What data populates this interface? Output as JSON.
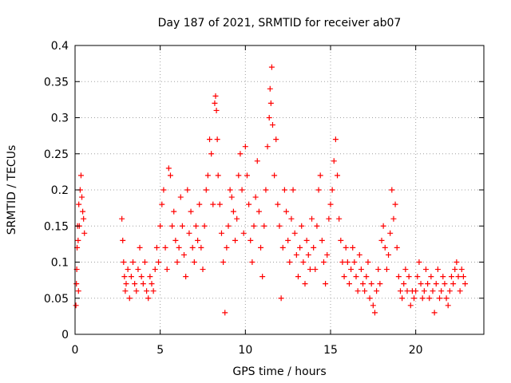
{
  "chart_data": {
    "type": "scatter",
    "title": "Day 187 of 2021, SRMTID for receiver ab07",
    "xlabel": "GPS time / hours",
    "ylabel": "SRMTID / TECUs",
    "xlim": [
      0,
      24
    ],
    "ylim": [
      0,
      0.4
    ],
    "xticks": [
      0,
      5,
      10,
      15,
      20
    ],
    "xtick_labels": [
      "0",
      "5",
      "10",
      "15",
      "20"
    ],
    "yticks": [
      0,
      0.05,
      0.1,
      0.15,
      0.2,
      0.25,
      0.3,
      0.35,
      0.4
    ],
    "ytick_labels": [
      "0",
      "0.05",
      "0.1",
      "0.15",
      "0.2",
      "0.25",
      "0.3",
      "0.35",
      "0.4"
    ],
    "grid": true,
    "marker": "plus",
    "color": "#ff0000",
    "series": [
      {
        "name": "SRMTID",
        "x": [
          0.05,
          0.08,
          0.1,
          0.12,
          0.15,
          0.18,
          0.2,
          0.22,
          0.25,
          0.3,
          0.35,
          0.4,
          0.45,
          0.5,
          0.55,
          2.75,
          2.8,
          2.85,
          2.9,
          2.95,
          3.0,
          3.1,
          3.2,
          3.3,
          3.4,
          3.5,
          3.6,
          3.7,
          3.8,
          3.9,
          4.0,
          4.1,
          4.2,
          4.3,
          4.4,
          4.5,
          4.6,
          4.7,
          4.8,
          4.9,
          5.0,
          5.1,
          5.2,
          5.3,
          5.4,
          5.5,
          5.6,
          5.7,
          5.8,
          5.9,
          6.0,
          6.1,
          6.2,
          6.3,
          6.4,
          6.5,
          6.6,
          6.7,
          6.8,
          6.9,
          7.0,
          7.1,
          7.2,
          7.3,
          7.4,
          7.5,
          7.6,
          7.7,
          7.8,
          7.9,
          8.0,
          8.1,
          8.2,
          8.25,
          8.3,
          8.35,
          8.4,
          8.5,
          8.6,
          8.7,
          8.8,
          8.9,
          9.0,
          9.1,
          9.2,
          9.3,
          9.4,
          9.5,
          9.6,
          9.7,
          9.8,
          9.9,
          10.0,
          10.1,
          10.2,
          10.3,
          10.4,
          10.5,
          10.6,
          10.7,
          10.8,
          10.9,
          11.0,
          11.1,
          11.2,
          11.3,
          11.4,
          11.45,
          11.5,
          11.55,
          11.6,
          11.7,
          11.8,
          11.9,
          12.0,
          12.1,
          12.2,
          12.3,
          12.4,
          12.5,
          12.6,
          12.7,
          12.8,
          12.9,
          13.0,
          13.1,
          13.2,
          13.3,
          13.4,
          13.5,
          13.6,
          13.7,
          13.8,
          13.9,
          14.0,
          14.1,
          14.2,
          14.3,
          14.4,
          14.5,
          14.6,
          14.7,
          14.8,
          14.9,
          15.0,
          15.1,
          15.2,
          15.3,
          15.4,
          15.5,
          15.6,
          15.7,
          15.8,
          15.9,
          16.0,
          16.1,
          16.2,
          16.3,
          16.4,
          16.5,
          16.6,
          16.7,
          16.8,
          16.9,
          17.0,
          17.1,
          17.2,
          17.3,
          17.4,
          17.5,
          17.6,
          17.7,
          17.8,
          17.9,
          18.0,
          18.1,
          18.2,
          18.3,
          18.4,
          18.5,
          18.6,
          18.7,
          18.8,
          18.9,
          19.0,
          19.1,
          19.2,
          19.3,
          19.4,
          19.5,
          19.6,
          19.7,
          19.8,
          19.9,
          20.0,
          20.1,
          20.2,
          20.3,
          20.4,
          20.5,
          20.6,
          20.7,
          20.8,
          20.9,
          21.0,
          21.1,
          21.2,
          21.3,
          21.4,
          21.5,
          21.6,
          21.7,
          21.8,
          21.9,
          22.0,
          22.1,
          22.2,
          22.3,
          22.4,
          22.5,
          22.6,
          22.7,
          22.8,
          22.9
        ],
        "y": [
          0.04,
          0.07,
          0.09,
          0.12,
          0.15,
          0.13,
          0.06,
          0.18,
          0.15,
          0.2,
          0.22,
          0.19,
          0.17,
          0.16,
          0.14,
          0.16,
          0.13,
          0.1,
          0.08,
          0.06,
          0.07,
          0.09,
          0.05,
          0.08,
          0.1,
          0.07,
          0.06,
          0.09,
          0.12,
          0.08,
          0.07,
          0.1,
          0.06,
          0.05,
          0.08,
          0.07,
          0.06,
          0.09,
          0.12,
          0.1,
          0.15,
          0.18,
          0.2,
          0.12,
          0.09,
          0.23,
          0.22,
          0.15,
          0.17,
          0.13,
          0.1,
          0.12,
          0.19,
          0.15,
          0.11,
          0.08,
          0.2,
          0.14,
          0.17,
          0.12,
          0.1,
          0.15,
          0.13,
          0.18,
          0.12,
          0.09,
          0.15,
          0.2,
          0.22,
          0.27,
          0.25,
          0.18,
          0.32,
          0.33,
          0.31,
          0.27,
          0.22,
          0.18,
          0.14,
          0.1,
          0.03,
          0.12,
          0.15,
          0.2,
          0.19,
          0.17,
          0.13,
          0.16,
          0.22,
          0.25,
          0.2,
          0.14,
          0.26,
          0.22,
          0.18,
          0.13,
          0.1,
          0.15,
          0.19,
          0.24,
          0.17,
          0.12,
          0.08,
          0.15,
          0.2,
          0.26,
          0.3,
          0.34,
          0.32,
          0.37,
          0.29,
          0.22,
          0.27,
          0.18,
          0.15,
          0.05,
          0.12,
          0.2,
          0.17,
          0.13,
          0.1,
          0.16,
          0.2,
          0.14,
          0.11,
          0.08,
          0.12,
          0.15,
          0.1,
          0.07,
          0.13,
          0.11,
          0.09,
          0.16,
          0.12,
          0.09,
          0.15,
          0.2,
          0.22,
          0.13,
          0.1,
          0.07,
          0.11,
          0.16,
          0.18,
          0.2,
          0.24,
          0.27,
          0.22,
          0.16,
          0.13,
          0.1,
          0.08,
          0.12,
          0.1,
          0.07,
          0.09,
          0.12,
          0.1,
          0.08,
          0.06,
          0.11,
          0.09,
          0.07,
          0.06,
          0.08,
          0.1,
          0.05,
          0.07,
          0.04,
          0.03,
          0.06,
          0.09,
          0.07,
          0.13,
          0.15,
          0.12,
          0.09,
          0.11,
          0.14,
          0.2,
          0.16,
          0.18,
          0.12,
          0.08,
          0.06,
          0.05,
          0.07,
          0.09,
          0.06,
          0.08,
          0.04,
          0.06,
          0.05,
          0.06,
          0.08,
          0.1,
          0.07,
          0.05,
          0.06,
          0.09,
          0.07,
          0.05,
          0.08,
          0.06,
          0.03,
          0.07,
          0.09,
          0.05,
          0.06,
          0.08,
          0.07,
          0.05,
          0.04,
          0.06,
          0.08,
          0.07,
          0.09,
          0.1,
          0.08,
          0.06,
          0.09,
          0.08,
          0.07
        ]
      }
    ]
  }
}
